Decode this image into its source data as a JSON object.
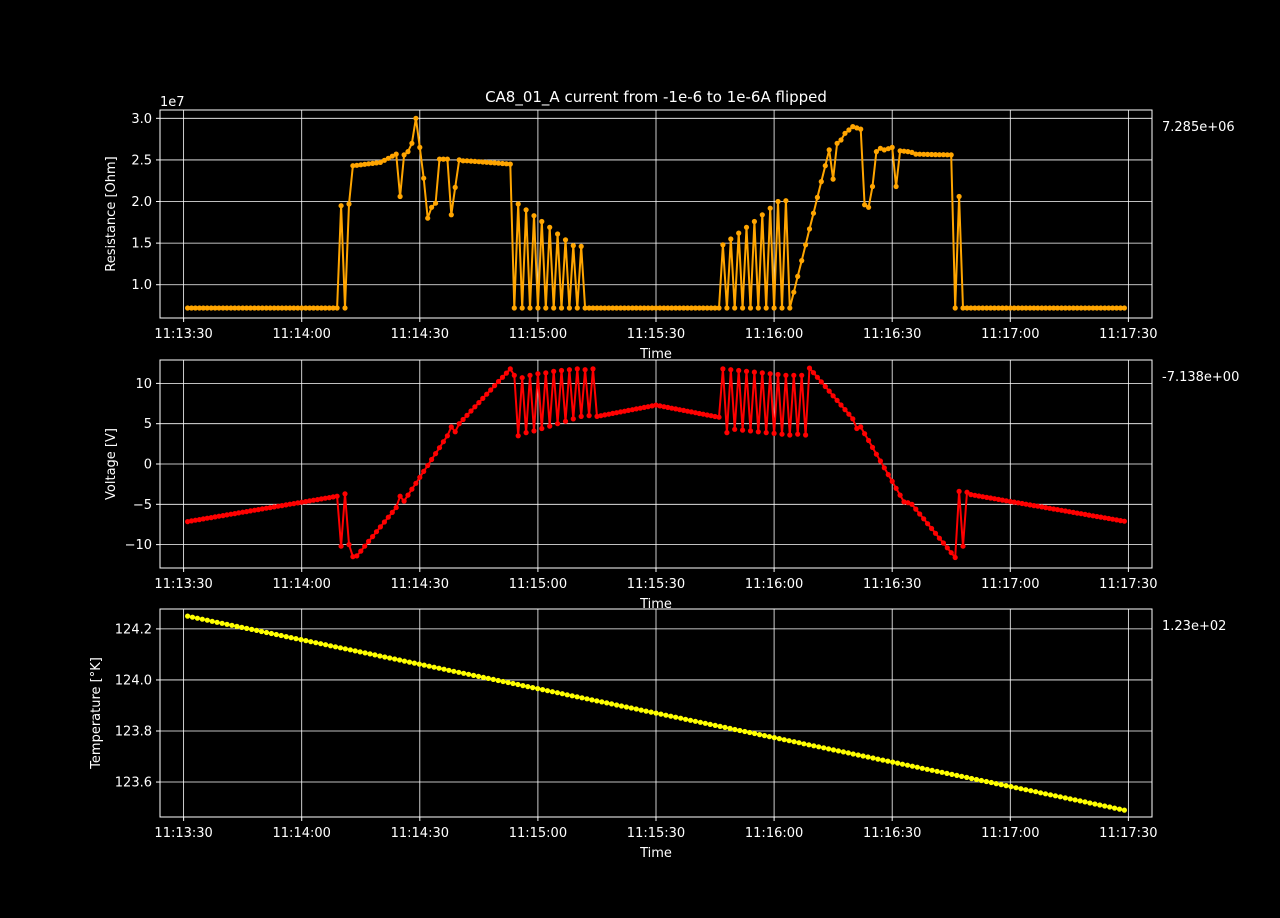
{
  "figure": {
    "title": "CA8_01_A current from -1e-6 to 1e-6A flipped",
    "background": "#000000",
    "foreground": "#ffffff"
  },
  "chart_data": [
    {
      "type": "line",
      "title": "CA8_01_A current from -1e-6 to 1e-6A flipped",
      "xlabel": "Time",
      "ylabel": "Resistance [Ohm]",
      "offset_text": "1e7",
      "last_value_text": "7.285e+06",
      "color": "#ffa500",
      "grid": true,
      "xlim": [
        "11:13:24",
        "11:17:36"
      ],
      "ylim": [
        0.6,
        3.1
      ],
      "xticks": [
        "11:13:30",
        "11:14:00",
        "11:14:30",
        "11:15:00",
        "11:15:30",
        "11:16:00",
        "11:16:30",
        "11:17:00",
        "11:17:30"
      ],
      "yticks": [
        1.0,
        1.5,
        2.0,
        2.5,
        3.0
      ],
      "ytick_labels": [
        "1.0",
        "1.5",
        "2.0",
        "2.5",
        "3.0"
      ],
      "series": [
        {
          "x": [
            "11:13:31",
            "11:14:09",
            "11:14:10",
            "11:14:11",
            "11:14:12",
            "11:14:13",
            "11:14:20",
            "11:14:24",
            "11:14:25",
            "11:14:26",
            "11:14:27",
            "11:14:28",
            "11:14:29",
            "11:14:30",
            "11:14:31",
            "11:14:32",
            "11:14:33",
            "11:14:34",
            "11:14:35",
            "11:14:37",
            "11:14:38",
            "11:14:40",
            "11:14:41",
            "11:14:42",
            "11:14:53",
            "11:14:54",
            "11:14:55",
            "11:14:56",
            "11:14:57",
            "11:14:58",
            "11:14:59",
            "11:15:00",
            "11:15:01",
            "11:15:02",
            "11:15:03",
            "11:15:04",
            "11:15:05",
            "11:15:06",
            "11:15:07",
            "11:15:08",
            "11:15:09",
            "11:15:10",
            "11:15:11",
            "11:15:12",
            "11:15:13",
            "11:15:14",
            "11:15:15",
            "11:15:46",
            "11:15:47",
            "11:15:48",
            "11:15:49",
            "11:15:50",
            "11:15:51",
            "11:15:52",
            "11:15:53",
            "11:15:54",
            "11:15:55",
            "11:15:56",
            "11:15:57",
            "11:15:58",
            "11:15:59",
            "11:16:00",
            "11:16:01",
            "11:16:02",
            "11:16:03",
            "11:16:04",
            "11:16:14",
            "11:16:15",
            "11:16:16",
            "11:16:17",
            "11:16:18",
            "11:16:20",
            "11:16:22",
            "11:16:23",
            "11:16:24",
            "11:16:25",
            "11:16:26",
            "11:16:27",
            "11:16:28",
            "11:16:30",
            "11:16:31",
            "11:16:32",
            "11:16:34",
            "11:16:35",
            "11:16:36",
            "11:16:45",
            "11:16:46",
            "11:16:47",
            "11:16:48",
            "11:16:49",
            "11:17:29"
          ],
          "y": [
            0.72,
            0.72,
            1.95,
            0.72,
            1.97,
            2.43,
            2.47,
            2.57,
            2.06,
            2.56,
            2.6,
            2.7,
            3.0,
            2.65,
            2.28,
            1.8,
            1.93,
            1.98,
            2.51,
            2.51,
            1.84,
            2.5,
            2.49,
            2.49,
            2.45,
            0.72,
            1.97,
            0.72,
            1.9,
            0.72,
            1.83,
            0.72,
            1.76,
            0.72,
            1.69,
            0.72,
            1.61,
            0.72,
            1.54,
            0.72,
            1.47,
            0.72,
            1.46,
            0.72,
            0.72,
            0.72,
            0.72,
            0.72,
            1.48,
            0.72,
            1.55,
            0.72,
            1.62,
            0.72,
            1.69,
            0.72,
            1.76,
            0.72,
            1.84,
            0.72,
            1.92,
            0.72,
            2.0,
            0.72,
            2.01,
            0.72,
            2.62,
            2.27,
            2.7,
            2.74,
            2.82,
            2.9,
            2.87,
            1.96,
            1.93,
            2.18,
            2.6,
            2.64,
            2.62,
            2.65,
            2.18,
            2.61,
            2.6,
            2.59,
            2.57,
            2.56,
            0.72,
            2.06,
            0.72,
            0.72,
            0.72
          ]
        }
      ]
    },
    {
      "type": "line",
      "xlabel": "Time",
      "ylabel": "Voltage [V]",
      "last_value_text": "-7.138e+00",
      "color": "#ff0000",
      "grid": true,
      "xlim": [
        "11:13:24",
        "11:17:36"
      ],
      "ylim": [
        -12.9,
        12.9
      ],
      "xticks": [
        "11:13:30",
        "11:14:00",
        "11:14:30",
        "11:15:00",
        "11:15:30",
        "11:16:00",
        "11:16:30",
        "11:17:00",
        "11:17:30"
      ],
      "yticks": [
        -10,
        -5,
        0,
        5,
        10
      ],
      "ytick_labels": [
        "−10",
        "−5",
        "0",
        "5",
        "10"
      ],
      "series": [
        {
          "x": [
            "11:13:31",
            "11:14:09",
            "11:14:10",
            "11:14:11",
            "11:14:12",
            "11:14:13",
            "11:14:14",
            "11:14:24",
            "11:14:25",
            "11:14:26",
            "11:14:37",
            "11:14:38",
            "11:14:39",
            "11:14:40",
            "11:14:53",
            "11:14:54",
            "11:14:55",
            "11:14:56",
            "11:14:57",
            "11:14:58",
            "11:14:59",
            "11:15:00",
            "11:15:01",
            "11:15:02",
            "11:15:03",
            "11:15:04",
            "11:15:05",
            "11:15:06",
            "11:15:07",
            "11:15:08",
            "11:15:09",
            "11:15:10",
            "11:15:11",
            "11:15:12",
            "11:15:13",
            "11:15:14",
            "11:15:15",
            "11:15:30",
            "11:15:46",
            "11:15:47",
            "11:15:48",
            "11:15:49",
            "11:15:50",
            "11:15:51",
            "11:15:52",
            "11:15:53",
            "11:15:54",
            "11:15:55",
            "11:15:56",
            "11:15:57",
            "11:15:58",
            "11:15:59",
            "11:16:00",
            "11:16:01",
            "11:16:02",
            "11:16:03",
            "11:16:04",
            "11:16:05",
            "11:16:06",
            "11:16:07",
            "11:16:08",
            "11:16:09",
            "11:16:20",
            "11:16:21",
            "11:16:22",
            "11:16:33",
            "11:16:34",
            "11:16:35",
            "11:16:46",
            "11:16:47",
            "11:16:48",
            "11:16:49",
            "11:16:50",
            "11:17:29"
          ],
          "y": [
            -7.14,
            -4.0,
            -10.2,
            -3.7,
            -10.0,
            -11.5,
            -11.4,
            -5.4,
            -4.0,
            -4.6,
            3.5,
            4.6,
            4.0,
            5.0,
            11.8,
            11.0,
            3.5,
            10.7,
            3.9,
            11.0,
            4.1,
            11.2,
            4.4,
            11.3,
            4.7,
            11.5,
            5.0,
            11.6,
            5.3,
            11.7,
            5.6,
            11.8,
            5.9,
            11.7,
            6.0,
            11.8,
            5.9,
            7.3,
            5.8,
            11.8,
            3.9,
            11.7,
            4.3,
            11.6,
            4.2,
            11.5,
            4.1,
            11.4,
            4.0,
            11.3,
            3.9,
            11.2,
            3.8,
            11.1,
            3.7,
            11.0,
            3.6,
            11.0,
            3.7,
            11.0,
            3.6,
            11.9,
            5.6,
            4.4,
            4.6,
            -4.7,
            -4.8,
            -5.0,
            -11.6,
            -3.4,
            -10.2,
            -3.5,
            -3.8,
            -7.1
          ]
        }
      ]
    },
    {
      "type": "line",
      "xlabel": "Time",
      "ylabel": "Temperature [°K]",
      "last_value_text": "1.23e+02",
      "color": "#ffff00",
      "grid": true,
      "xlim": [
        "11:13:24",
        "11:17:36"
      ],
      "ylim": [
        123.463,
        124.278
      ],
      "xticks": [
        "11:13:30",
        "11:14:00",
        "11:14:30",
        "11:15:00",
        "11:15:30",
        "11:16:00",
        "11:16:30",
        "11:17:00",
        "11:17:30"
      ],
      "yticks": [
        123.6,
        123.8,
        124.0,
        124.2
      ],
      "ytick_labels": [
        "123.6",
        "123.8",
        "124.0",
        "124.2"
      ],
      "series": [
        {
          "x": [
            "11:13:31",
            "11:17:29"
          ],
          "y": [
            124.25,
            123.49
          ]
        }
      ]
    }
  ]
}
